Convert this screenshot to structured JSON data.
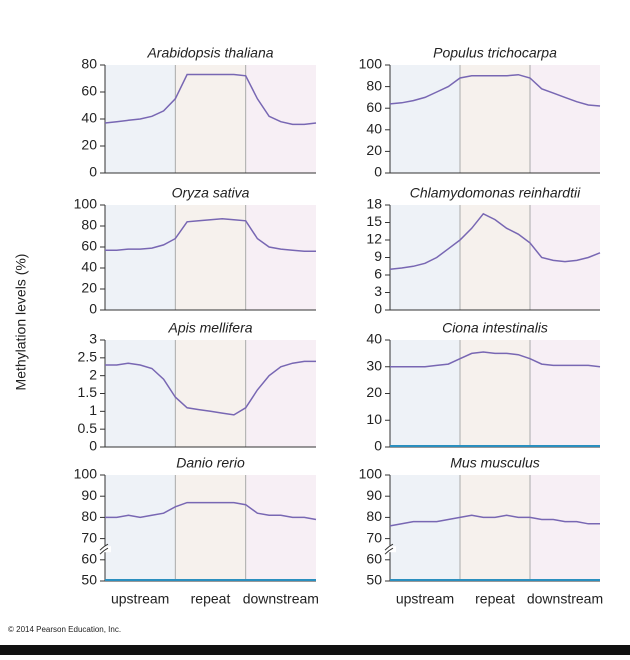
{
  "chart_data": [
    {
      "type": "line",
      "title": "Arabidopsis thaliana",
      "ylim": [
        0,
        80
      ],
      "yticks": [
        0,
        20,
        40,
        60,
        80
      ],
      "color": "#7867b3",
      "values": [
        37,
        38,
        39,
        40,
        42,
        46,
        55,
        73,
        73,
        73,
        73,
        73,
        72,
        55,
        42,
        38,
        36,
        36,
        37
      ]
    },
    {
      "type": "line",
      "title": "Populus trichocarpa",
      "ylim": [
        0,
        100
      ],
      "yticks": [
        0,
        20,
        40,
        60,
        80,
        100
      ],
      "color": "#7867b3",
      "values": [
        64,
        65,
        67,
        70,
        75,
        80,
        88,
        90,
        90,
        90,
        90,
        91,
        88,
        78,
        74,
        70,
        66,
        63,
        62
      ]
    },
    {
      "type": "line",
      "title": "Oryza sativa",
      "ylim": [
        0,
        100
      ],
      "yticks": [
        0,
        20,
        40,
        60,
        80,
        100
      ],
      "color": "#7867b3",
      "values": [
        57,
        57,
        58,
        58,
        59,
        62,
        68,
        84,
        85,
        86,
        87,
        86,
        85,
        68,
        60,
        58,
        57,
        56,
        56
      ]
    },
    {
      "type": "line",
      "title": "Chlamydomonas reinhardtii",
      "ylim": [
        0,
        18
      ],
      "yticks": [
        0,
        3,
        6,
        9,
        12,
        15,
        18
      ],
      "color": "#7867b3",
      "values": [
        7,
        7.2,
        7.5,
        8,
        9,
        10.5,
        12,
        14,
        16.5,
        15.5,
        14,
        13,
        11.5,
        9,
        8.5,
        8.3,
        8.5,
        9,
        9.8
      ]
    },
    {
      "type": "line",
      "title": "Apis mellifera",
      "ylim": [
        0,
        3
      ],
      "yticks": [
        0,
        0.5,
        1,
        1.5,
        2,
        2.5,
        3
      ],
      "color": "#7867b3",
      "values": [
        2.3,
        2.3,
        2.35,
        2.3,
        2.2,
        1.9,
        1.4,
        1.1,
        1.05,
        1,
        0.95,
        0.9,
        1.1,
        1.6,
        2,
        2.25,
        2.35,
        2.4,
        2.4
      ]
    },
    {
      "type": "line",
      "title": "Ciona intestinalis",
      "ylim": [
        0,
        40
      ],
      "yticks": [
        0,
        10,
        20,
        30,
        40
      ],
      "color": "#7867b3",
      "values": [
        30,
        30,
        30,
        30,
        30.5,
        31,
        33,
        35,
        35.5,
        35,
        35,
        34.5,
        33,
        31,
        30.5,
        30.5,
        30.5,
        30.5,
        30
      ]
    },
    {
      "type": "line",
      "title": "Danio rerio",
      "ylim": [
        50,
        100
      ],
      "yticks": [
        50,
        60,
        70,
        80,
        90,
        100
      ],
      "color": "#7867b3",
      "values": [
        80,
        80,
        81,
        80,
        81,
        82,
        85,
        87,
        87,
        87,
        87,
        87,
        86,
        82,
        81,
        81,
        80,
        80,
        79
      ]
    },
    {
      "type": "line",
      "title": "Mus musculus",
      "ylim": [
        50,
        100
      ],
      "yticks": [
        50,
        60,
        70,
        80,
        90,
        100
      ],
      "color": "#7867b3",
      "values": [
        76,
        77,
        78,
        78,
        78,
        79,
        80,
        81,
        80,
        80,
        81,
        80,
        80,
        79,
        79,
        78,
        78,
        77,
        77
      ]
    }
  ],
  "x_labels": [
    "upstream",
    "repeat",
    "downstream"
  ],
  "y_label": "Methylation levels (%)",
  "copyright": "© 2014 Pearson Education, Inc."
}
